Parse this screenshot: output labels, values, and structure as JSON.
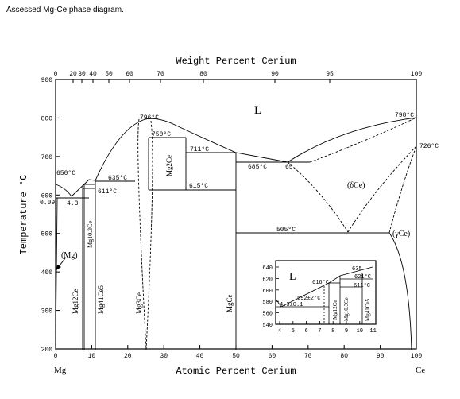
{
  "caption": "Assessed Mg-Ce phase diagram.",
  "x_axis_title": "Atomic Percent Cerium",
  "top_axis_title": "Weight Percent Cerium",
  "y_axis_title": "Temperature °C",
  "left_element": "Mg",
  "right_element": "Ce",
  "bottom_ticks": [
    "0",
    "10",
    "20",
    "30",
    "40",
    "50",
    "60",
    "70",
    "80",
    "90",
    "100"
  ],
  "top_ticks": [
    "0",
    "20",
    "30",
    "40",
    "50",
    "60",
    "70",
    "80",
    "90",
    "95",
    "100"
  ],
  "y_ticks": [
    "200",
    "300",
    "400",
    "500",
    "600",
    "700",
    "800",
    "900"
  ],
  "labels": {
    "liquid": "L",
    "t796": "796°C",
    "t798": "798°C",
    "t726": "726°C",
    "t750": "750°C",
    "t711": "711°C",
    "t685": "685°C",
    "c65": "65",
    "t650": "650°C",
    "t635": "635°C",
    "t611": "611°C",
    "t615": "615°C",
    "c009": "0.09",
    "c43": "4.3",
    "t505": "505°C",
    "delta": "(δCe)",
    "gamma": "(γCe)",
    "mg_phase": "(Mg)",
    "mg12ce": "Mg12Ce",
    "mg103ce": "Mg10.3Ce",
    "mg41ce5": "Mg41Ce5",
    "mg3ce": "Mg3Ce",
    "mg2ce": "Mg2Ce",
    "mgce": "MgCe"
  },
  "inset": {
    "liquid": "L",
    "y_ticks": [
      "540",
      "560",
      "580",
      "600",
      "620",
      "640"
    ],
    "x_ticks": [
      "4",
      "5",
      "6",
      "7",
      "8",
      "9",
      "10",
      "11"
    ],
    "t635": "635",
    "t621": "621°C",
    "t616": "616°C",
    "t611": "611°C",
    "t592": "592±2°C",
    "c43": "4.3±0.1",
    "mg12ce": "Mg12Ce",
    "mg103ce": "Mg10.3Ce",
    "mg41ce5": "Mg41Ce5"
  }
}
